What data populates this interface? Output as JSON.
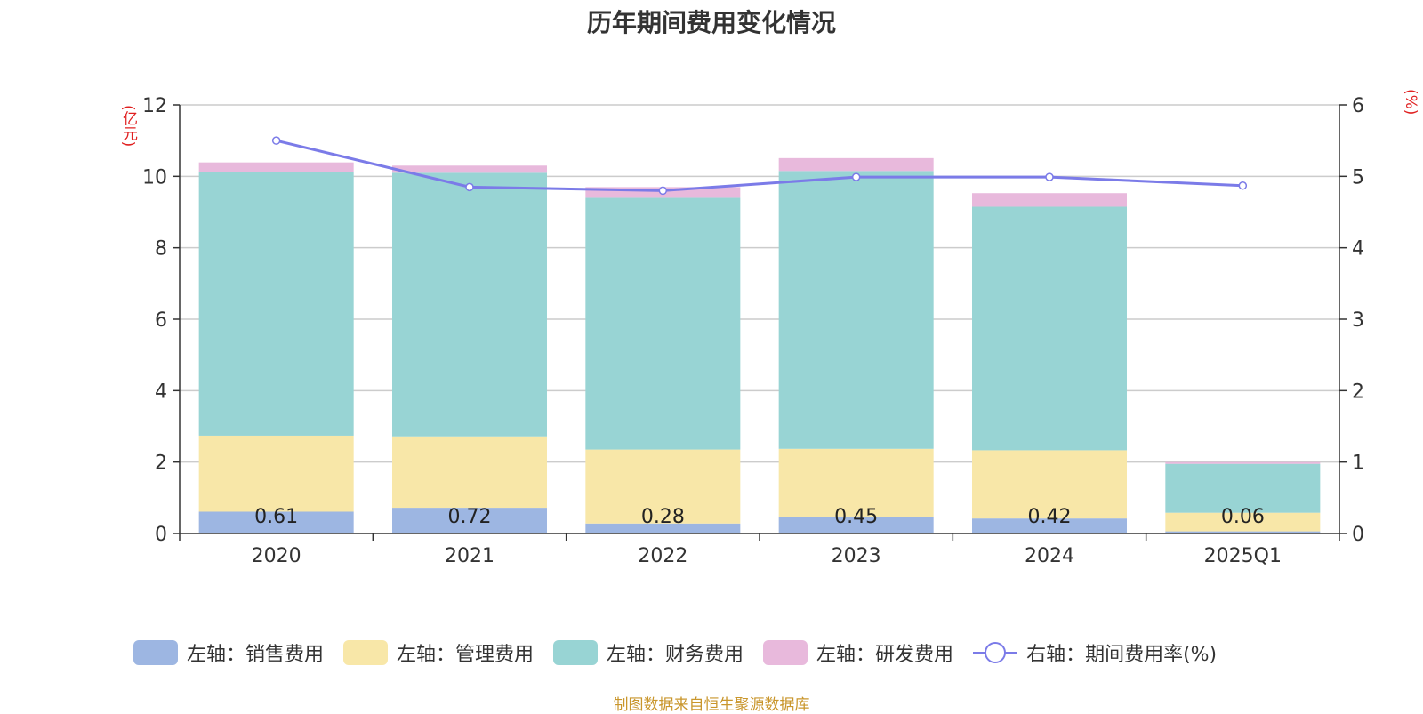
{
  "chart_data": {
    "type": "bar",
    "title": "历年期间费用变化情况",
    "categories": [
      "2020",
      "2021",
      "2022",
      "2023",
      "2024",
      "2025Q1"
    ],
    "series": [
      {
        "name": "左轴：销售费用",
        "axis": "left",
        "color": "#9db6e2",
        "values": [
          0.61,
          0.72,
          0.28,
          0.45,
          0.42,
          0.06
        ],
        "labels": [
          "0.61",
          "0.72",
          "0.28",
          "0.45",
          "0.42",
          "0.06"
        ]
      },
      {
        "name": "左轴：管理费用",
        "axis": "left",
        "color": "#f8e7a8",
        "values": [
          2.13,
          2.0,
          2.07,
          1.92,
          1.91,
          0.52
        ]
      },
      {
        "name": "左轴：财务费用",
        "axis": "left",
        "color": "#98d4d4",
        "values": [
          7.38,
          7.38,
          7.05,
          7.78,
          6.82,
          1.37
        ]
      },
      {
        "name": "左轴：研发费用",
        "axis": "left",
        "color": "#e8b9dc",
        "values": [
          0.27,
          0.2,
          0.3,
          0.36,
          0.38,
          0.05
        ]
      }
    ],
    "line_series": {
      "name": "右轴：期间费用率(%)",
      "axis": "right",
      "color": "#7b7be8",
      "values": [
        5.5,
        4.85,
        4.8,
        4.99,
        4.99,
        4.87
      ]
    },
    "left_axis": {
      "unit": "(亿元)",
      "ylim": [
        0,
        12
      ],
      "ticks": [
        "0",
        "2",
        "4",
        "6",
        "8",
        "10",
        "12"
      ]
    },
    "right_axis": {
      "unit": "(%)",
      "ylim": [
        0,
        6
      ],
      "ticks": [
        "0",
        "1",
        "2",
        "3",
        "4",
        "5",
        "6"
      ]
    },
    "grid": true,
    "legend_position": "bottom"
  },
  "footer": "制图数据来自恒生聚源数据库"
}
